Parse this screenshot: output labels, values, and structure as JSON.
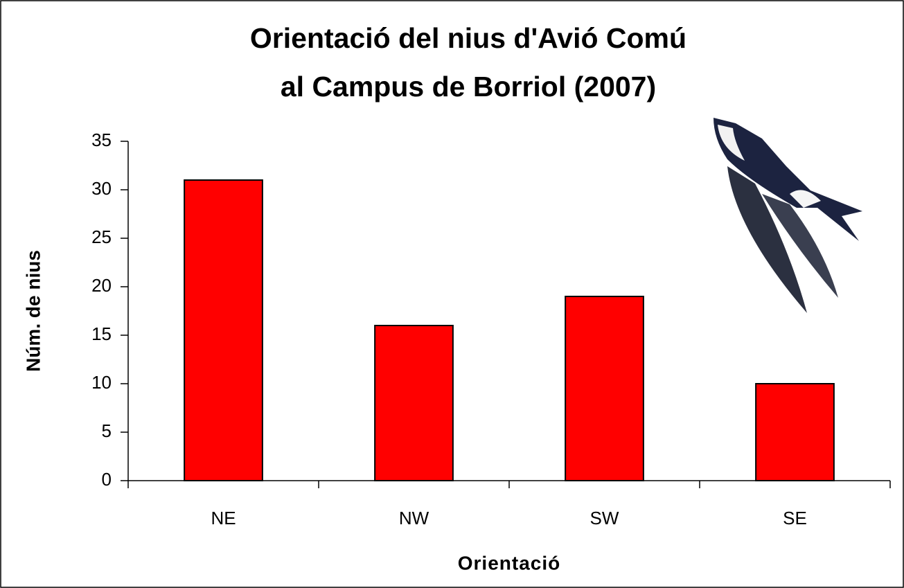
{
  "chart_data": {
    "type": "bar",
    "title": [
      "Orientació del nius d'Avió Comú",
      "al Campus de Borriol (2007)"
    ],
    "x_label": "Orientació",
    "y_label": "Núm. de nius",
    "categories": [
      "NE",
      "NW",
      "SW",
      "SE"
    ],
    "values": [
      31,
      16,
      19,
      10
    ],
    "color": "#ff0000",
    "ylim": [
      0,
      35
    ],
    "yticks": [
      0,
      5,
      10,
      15,
      20,
      25,
      30,
      35
    ],
    "grid": false
  }
}
